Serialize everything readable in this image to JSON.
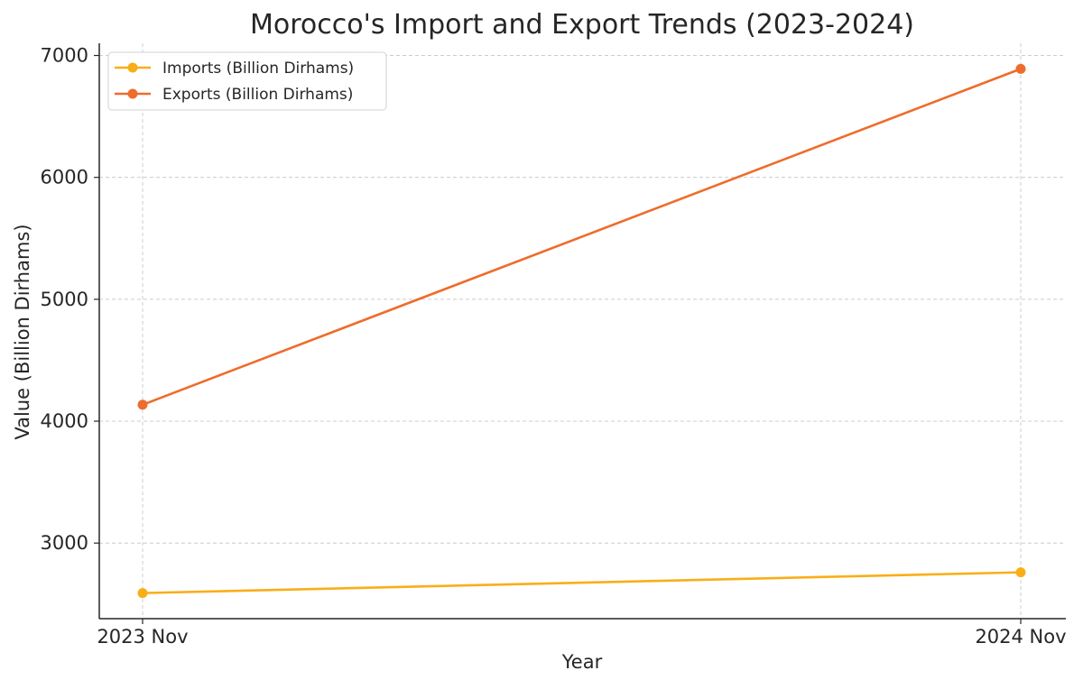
{
  "chart_data": {
    "type": "line",
    "title": "Morocco's Import and Export Trends (2023-2024)",
    "xlabel": "Year",
    "ylabel": "Value (Billion Dirhams)",
    "categories": [
      "2023 Nov",
      "2024 Nov"
    ],
    "ylim": [
      2380,
      7100
    ],
    "yticks": [
      3000,
      4000,
      5000,
      6000,
      7000
    ],
    "grid": true,
    "legend_position": "top-left",
    "series": [
      {
        "name": "Imports (Billion Dirhams)",
        "color": "#f9ae18",
        "values": [
          2590,
          2760
        ]
      },
      {
        "name": "Exports (Billion Dirhams)",
        "color": "#ee6c2c",
        "values": [
          4135,
          6890
        ]
      }
    ]
  }
}
